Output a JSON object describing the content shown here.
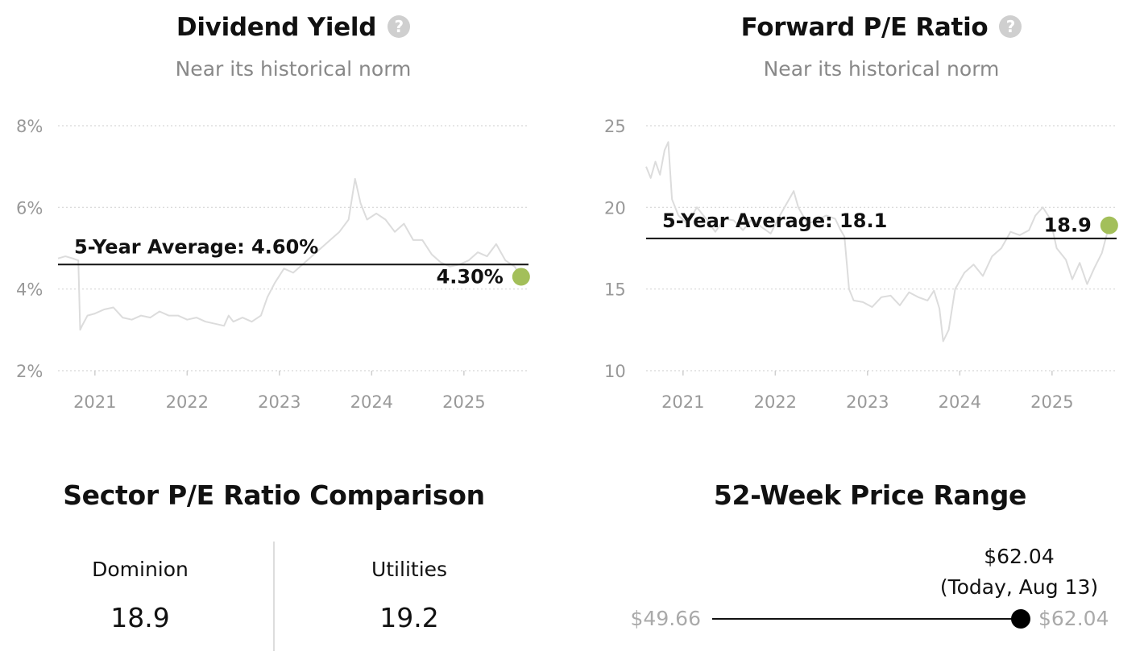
{
  "dividend_yield": {
    "title": "Dividend Yield",
    "subtitle": "Near its historical norm",
    "help_icon": "question-circle-icon"
  },
  "forward_pe": {
    "title": "Forward P/E Ratio",
    "subtitle": "Near its historical norm",
    "help_icon": "question-circle-icon"
  },
  "sector_comparison": {
    "title": "Sector P/E Ratio Comparison",
    "left": {
      "name": "Dominion",
      "value": "18.9"
    },
    "right": {
      "name": "Utilities",
      "value": "19.2"
    }
  },
  "price_range": {
    "title": "52-Week Price Range",
    "low": "$49.66",
    "high": "$62.04",
    "current_price": "$62.04",
    "current_note": "(Today, Aug 13)",
    "current_position": 1.0
  },
  "colors": {
    "current_dot": "#a3bf5a",
    "series_line": "#dcdcdc",
    "average_line": "#111111"
  },
  "chart_data": [
    {
      "type": "line",
      "name": "Dividend Yield",
      "title": "Dividend Yield",
      "subtitle": "Near its historical norm",
      "x_range": [
        2020.6,
        2025.7
      ],
      "ylim": [
        2,
        8
      ],
      "y_ticks": [
        2,
        4,
        6,
        8
      ],
      "y_tick_labels": [
        "2%",
        "4%",
        "6%",
        "8%"
      ],
      "x_ticks": [
        2021,
        2022,
        2023,
        2024,
        2025
      ],
      "x_tick_labels": [
        "2021",
        "2022",
        "2023",
        "2024",
        "2025"
      ],
      "grid": true,
      "average": {
        "label": "5-Year Average: 4.60%",
        "value": 4.6
      },
      "current": {
        "label": "4.30%",
        "x": 2025.62,
        "value": 4.3
      },
      "series": [
        {
          "x": [
            2020.6,
            2020.68,
            2020.76,
            2020.82,
            2020.84,
            2020.86,
            2020.92,
            2021.0,
            2021.1,
            2021.2,
            2021.3,
            2021.4,
            2021.5,
            2021.6,
            2021.7,
            2021.8,
            2021.9,
            2022.0,
            2022.1,
            2022.2,
            2022.3,
            2022.4,
            2022.45,
            2022.5,
            2022.6,
            2022.7,
            2022.8,
            2022.87,
            2022.95,
            2023.05,
            2023.15,
            2023.25,
            2023.35,
            2023.45,
            2023.55,
            2023.65,
            2023.75,
            2023.82,
            2023.88,
            2023.95,
            2024.05,
            2024.15,
            2024.25,
            2024.35,
            2024.45,
            2024.55,
            2024.65,
            2024.75,
            2024.85,
            2024.95,
            2025.05,
            2025.15,
            2025.25,
            2025.35,
            2025.45,
            2025.55,
            2025.62
          ],
          "values": [
            4.75,
            4.8,
            4.75,
            4.7,
            3.0,
            3.1,
            3.35,
            3.4,
            3.5,
            3.55,
            3.3,
            3.25,
            3.35,
            3.3,
            3.45,
            3.35,
            3.35,
            3.25,
            3.3,
            3.2,
            3.15,
            3.1,
            3.35,
            3.2,
            3.3,
            3.2,
            3.35,
            3.8,
            4.15,
            4.5,
            4.4,
            4.6,
            4.8,
            5.0,
            5.2,
            5.4,
            5.7,
            6.7,
            6.1,
            5.7,
            5.85,
            5.7,
            5.4,
            5.6,
            5.2,
            5.2,
            4.85,
            4.65,
            4.55,
            4.6,
            4.7,
            4.9,
            4.8,
            5.1,
            4.7,
            4.55,
            4.3
          ]
        }
      ]
    },
    {
      "type": "line",
      "name": "Forward P/E Ratio",
      "title": "Forward P/E Ratio",
      "subtitle": "Near its historical norm",
      "x_range": [
        2020.6,
        2025.7
      ],
      "ylim": [
        10,
        25
      ],
      "y_ticks": [
        10,
        15,
        20,
        25
      ],
      "y_tick_labels": [
        "10",
        "15",
        "20",
        "25"
      ],
      "x_ticks": [
        2021,
        2022,
        2023,
        2024,
        2025
      ],
      "x_tick_labels": [
        "2021",
        "2022",
        "2023",
        "2024",
        "2025"
      ],
      "grid": true,
      "average": {
        "label": "5-Year Average: 18.1",
        "value": 18.1
      },
      "current": {
        "label": "18.9",
        "x": 2025.62,
        "value": 18.9
      },
      "series": [
        {
          "x": [
            2020.6,
            2020.65,
            2020.7,
            2020.75,
            2020.8,
            2020.84,
            2020.88,
            2020.95,
            2021.05,
            2021.15,
            2021.25,
            2021.35,
            2021.45,
            2021.55,
            2021.65,
            2021.75,
            2021.85,
            2021.95,
            2022.05,
            2022.15,
            2022.2,
            2022.25,
            2022.35,
            2022.45,
            2022.55,
            2022.65,
            2022.7,
            2022.75,
            2022.8,
            2022.85,
            2022.95,
            2023.05,
            2023.15,
            2023.25,
            2023.35,
            2023.45,
            2023.55,
            2023.65,
            2023.72,
            2023.78,
            2023.82,
            2023.88,
            2023.95,
            2024.05,
            2024.15,
            2024.25,
            2024.35,
            2024.45,
            2024.55,
            2024.65,
            2024.75,
            2024.82,
            2024.9,
            2024.98,
            2025.05,
            2025.15,
            2025.22,
            2025.3,
            2025.38,
            2025.46,
            2025.54,
            2025.62
          ],
          "values": [
            22.5,
            21.8,
            22.8,
            22.0,
            23.5,
            24.0,
            20.5,
            19.5,
            19.0,
            20.0,
            19.3,
            18.5,
            19.3,
            19.2,
            18.6,
            19.3,
            18.8,
            18.4,
            19.5,
            20.5,
            21.0,
            20.0,
            19.0,
            19.2,
            19.5,
            19.3,
            18.7,
            18.2,
            15.0,
            14.3,
            14.2,
            13.9,
            14.5,
            14.6,
            14.0,
            14.8,
            14.5,
            14.3,
            14.9,
            13.8,
            11.8,
            12.5,
            15.0,
            16.0,
            16.5,
            15.8,
            17.0,
            17.5,
            18.5,
            18.3,
            18.6,
            19.5,
            20.0,
            19.3,
            17.5,
            16.8,
            15.6,
            16.6,
            15.3,
            16.3,
            17.2,
            18.9
          ]
        }
      ]
    }
  ]
}
